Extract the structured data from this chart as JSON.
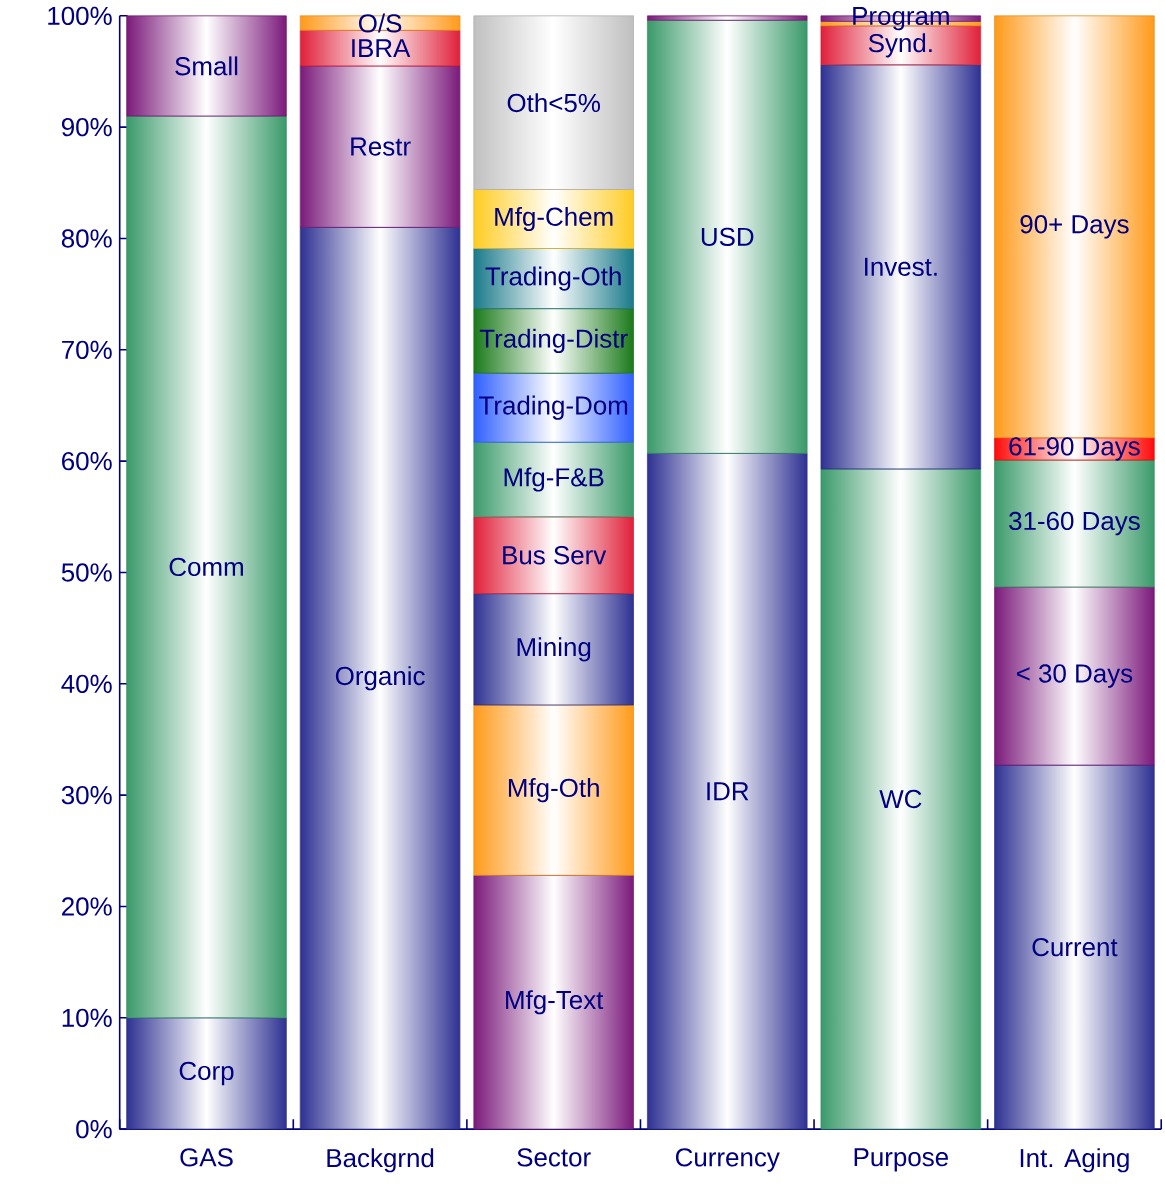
{
  "chart_data": {
    "type": "bar",
    "stacked": true,
    "grid": false,
    "categories": [
      "GAS",
      "Backgrnd",
      "Sector",
      "Currency",
      "Purpose",
      "Int. Aging"
    ],
    "ylim": [
      0,
      100
    ],
    "yticks": [
      {
        "value": 0,
        "label": "0%"
      },
      {
        "value": 10,
        "label": "10%"
      },
      {
        "value": 20,
        "label": "20%"
      },
      {
        "value": 30,
        "label": "30%"
      },
      {
        "value": 40,
        "label": "40%"
      },
      {
        "value": 50,
        "label": "50%"
      },
      {
        "value": 60,
        "label": "60%"
      },
      {
        "value": 70,
        "label": "70%"
      },
      {
        "value": 80,
        "label": "80%"
      },
      {
        "value": 90,
        "label": "90%"
      },
      {
        "value": 100,
        "label": "100%"
      }
    ],
    "series": [
      {
        "name": "Corp",
        "color": "#2e3192",
        "values": [
          10,
          null,
          null,
          null,
          null,
          null
        ]
      },
      {
        "name": "Comm",
        "color": "#3a9a6a",
        "values": [
          81,
          null,
          null,
          null,
          null,
          null
        ]
      },
      {
        "name": "Small",
        "color": "#7b1a7b",
        "values": [
          9,
          null,
          null,
          null,
          null,
          null
        ]
      },
      {
        "name": "Organic",
        "color": "#2e3192",
        "values": [
          null,
          81,
          null,
          null,
          null,
          null
        ]
      },
      {
        "name": "Restr",
        "color": "#7b1a7b",
        "values": [
          null,
          14.5,
          null,
          null,
          null,
          null
        ]
      },
      {
        "name": "IBRA",
        "color": "#e0203a",
        "values": [
          null,
          3.2,
          null,
          null,
          null,
          null
        ]
      },
      {
        "name": "O/S",
        "color": "#ff9a1a",
        "values": [
          null,
          1.3,
          null,
          null,
          null,
          null
        ]
      },
      {
        "name": "Mfg-Text",
        "color": "#7b1a7b",
        "values": [
          null,
          null,
          22.8,
          null,
          null,
          null
        ]
      },
      {
        "name": "Mfg-Oth",
        "color": "#ff9a1a",
        "values": [
          null,
          null,
          15.3,
          null,
          null,
          null
        ]
      },
      {
        "name": "Mining",
        "color": "#2e3192",
        "values": [
          null,
          null,
          10,
          null,
          null,
          null
        ]
      },
      {
        "name": "Bus Serv",
        "color": "#e0203a",
        "values": [
          null,
          null,
          6.9,
          null,
          null,
          null
        ]
      },
      {
        "name": "Mfg-F&B",
        "color": "#3a9a6a",
        "values": [
          null,
          null,
          6.7,
          null,
          null,
          null
        ]
      },
      {
        "name": "Trading-Dom",
        "color": "#2f5fff",
        "values": [
          null,
          null,
          6.2,
          null,
          null,
          null
        ]
      },
      {
        "name": "Trading-Distr",
        "color": "#1a7a1a",
        "values": [
          null,
          null,
          5.8,
          null,
          null,
          null
        ]
      },
      {
        "name": "Trading-Oth",
        "color": "#1a7a8a",
        "values": [
          null,
          null,
          5.4,
          null,
          null,
          null
        ]
      },
      {
        "name": "Mfg-Chem",
        "color": "#ffcc22",
        "values": [
          null,
          null,
          5.3,
          null,
          null,
          null
        ]
      },
      {
        "name": "Oth<5%",
        "color": "#c0c0c0",
        "values": [
          null,
          null,
          15.6,
          null,
          null,
          null
        ]
      },
      {
        "name": "IDR",
        "color": "#2e3192",
        "values": [
          null,
          null,
          null,
          60.7,
          null,
          null
        ]
      },
      {
        "name": "USD",
        "color": "#3a9a6a",
        "values": [
          null,
          null,
          null,
          38.9,
          null,
          null
        ]
      },
      {
        "color": "#7b1a7b",
        "values": [
          null,
          null,
          null,
          0.4,
          null,
          null
        ]
      },
      {
        "name": "WC",
        "color": "#3a9a6a",
        "values": [
          null,
          null,
          null,
          null,
          59.3,
          null
        ]
      },
      {
        "name": "Invest.",
        "color": "#2e3192",
        "values": [
          null,
          null,
          null,
          null,
          36.3,
          null
        ]
      },
      {
        "name": "Synd.",
        "color": "#e0203a",
        "values": [
          null,
          null,
          null,
          null,
          3.5,
          null
        ]
      },
      {
        "color": "#ff9a1a",
        "values": [
          null,
          null,
          null,
          null,
          0.4,
          null
        ]
      },
      {
        "name": "Program",
        "color": "#7b1a7b",
        "values": [
          null,
          null,
          null,
          null,
          0.5,
          null
        ]
      },
      {
        "name": "Current",
        "color": "#2e3192",
        "values": [
          null,
          null,
          null,
          null,
          null,
          32.7
        ]
      },
      {
        "name": "< 30 Days",
        "color": "#7b1a7b",
        "values": [
          null,
          null,
          null,
          null,
          null,
          16
        ]
      },
      {
        "name": "31-60 Days",
        "color": "#3a9a6a",
        "values": [
          null,
          null,
          null,
          null,
          null,
          11.4
        ]
      },
      {
        "name": "61-90 Days",
        "color": "#ff0a0a",
        "values": [
          null,
          null,
          null,
          null,
          null,
          2
        ]
      },
      {
        "name": "90+ Days",
        "color": "#ff9a1a",
        "values": [
          null,
          null,
          null,
          null,
          null,
          37.9
        ]
      }
    ]
  }
}
